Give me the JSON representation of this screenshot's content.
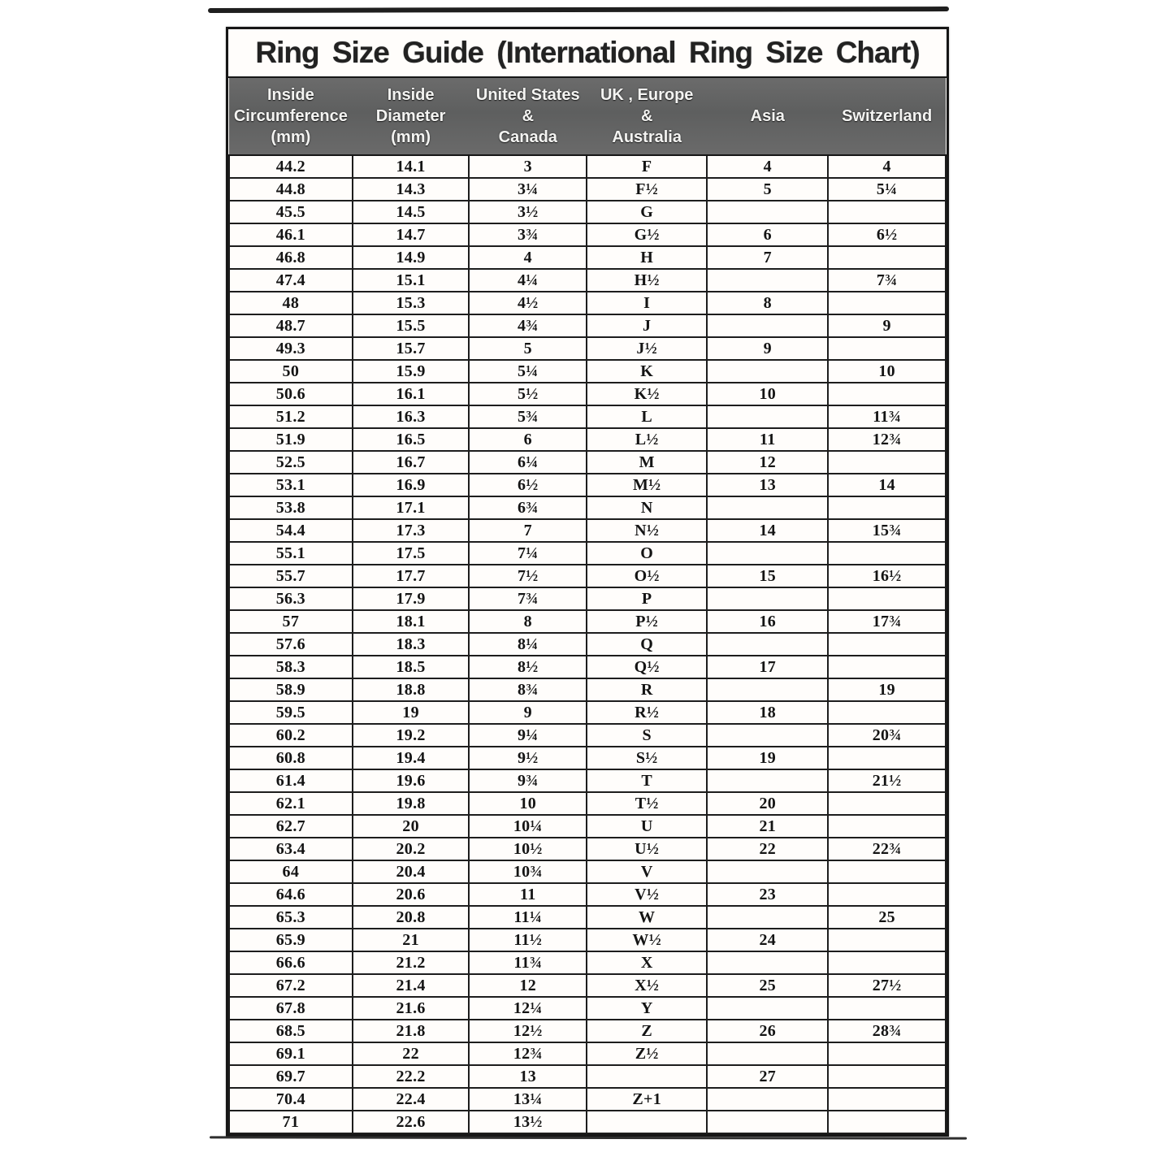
{
  "title": "Ring Size Guide (International Ring Size Chart)",
  "colors": {
    "header_bg": "#636363",
    "header_text": "#ffffff",
    "border": "#1d1d1d",
    "title_text": "#222222",
    "page_bg": "#ffffff"
  },
  "table": {
    "columns": [
      "Inside\nCircumference\n(mm)",
      "Inside\nDiameter\n(mm)",
      "United States\n&\nCanada",
      "UK , Europe\n&\nAustralia",
      "Asia",
      "Switzerland"
    ],
    "rows": [
      [
        "44.2",
        "14.1",
        "3",
        "F",
        "4",
        "4"
      ],
      [
        "44.8",
        "14.3",
        "3¼",
        "F½",
        "5",
        "5¼"
      ],
      [
        "45.5",
        "14.5",
        "3½",
        "G",
        "",
        ""
      ],
      [
        "46.1",
        "14.7",
        "3¾",
        "G½",
        "6",
        "6½"
      ],
      [
        "46.8",
        "14.9",
        "4",
        "H",
        "7",
        ""
      ],
      [
        "47.4",
        "15.1",
        "4¼",
        "H½",
        "",
        "7¾"
      ],
      [
        "48",
        "15.3",
        "4½",
        "I",
        "8",
        ""
      ],
      [
        "48.7",
        "15.5",
        "4¾",
        "J",
        "",
        "9"
      ],
      [
        "49.3",
        "15.7",
        "5",
        "J½",
        "9",
        ""
      ],
      [
        "50",
        "15.9",
        "5¼",
        "K",
        "",
        "10"
      ],
      [
        "50.6",
        "16.1",
        "5½",
        "K½",
        "10",
        ""
      ],
      [
        "51.2",
        "16.3",
        "5¾",
        "L",
        "",
        "11¾"
      ],
      [
        "51.9",
        "16.5",
        "6",
        "L½",
        "11",
        "12¾"
      ],
      [
        "52.5",
        "16.7",
        "6¼",
        "M",
        "12",
        ""
      ],
      [
        "53.1",
        "16.9",
        "6½",
        "M½",
        "13",
        "14"
      ],
      [
        "53.8",
        "17.1",
        "6¾",
        "N",
        "",
        ""
      ],
      [
        "54.4",
        "17.3",
        "7",
        "N½",
        "14",
        "15¾"
      ],
      [
        "55.1",
        "17.5",
        "7¼",
        "O",
        "",
        ""
      ],
      [
        "55.7",
        "17.7",
        "7½",
        "O½",
        "15",
        "16½"
      ],
      [
        "56.3",
        "17.9",
        "7¾",
        "P",
        "",
        ""
      ],
      [
        "57",
        "18.1",
        "8",
        "P½",
        "16",
        "17¾"
      ],
      [
        "57.6",
        "18.3",
        "8¼",
        "Q",
        "",
        ""
      ],
      [
        "58.3",
        "18.5",
        "8½",
        "Q½",
        "17",
        ""
      ],
      [
        "58.9",
        "18.8",
        "8¾",
        "R",
        "",
        "19"
      ],
      [
        "59.5",
        "19",
        "9",
        "R½",
        "18",
        ""
      ],
      [
        "60.2",
        "19.2",
        "9¼",
        "S",
        "",
        "20¾"
      ],
      [
        "60.8",
        "19.4",
        "9½",
        "S½",
        "19",
        ""
      ],
      [
        "61.4",
        "19.6",
        "9¾",
        "T",
        "",
        "21½"
      ],
      [
        "62.1",
        "19.8",
        "10",
        "T½",
        "20",
        ""
      ],
      [
        "62.7",
        "20",
        "10¼",
        "U",
        "21",
        ""
      ],
      [
        "63.4",
        "20.2",
        "10½",
        "U½",
        "22",
        "22¾"
      ],
      [
        "64",
        "20.4",
        "10¾",
        "V",
        "",
        ""
      ],
      [
        "64.6",
        "20.6",
        "11",
        "V½",
        "23",
        ""
      ],
      [
        "65.3",
        "20.8",
        "11¼",
        "W",
        "",
        "25"
      ],
      [
        "65.9",
        "21",
        "11½",
        "W½",
        "24",
        ""
      ],
      [
        "66.6",
        "21.2",
        "11¾",
        "X",
        "",
        ""
      ],
      [
        "67.2",
        "21.4",
        "12",
        "X½",
        "25",
        "27½"
      ],
      [
        "67.8",
        "21.6",
        "12¼",
        "Y",
        "",
        ""
      ],
      [
        "68.5",
        "21.8",
        "12½",
        "Z",
        "26",
        "28¾"
      ],
      [
        "69.1",
        "22",
        "12¾",
        "Z½",
        "",
        ""
      ],
      [
        "69.7",
        "22.2",
        "13",
        "",
        "27",
        ""
      ],
      [
        "70.4",
        "22.4",
        "13¼",
        "Z+1",
        "",
        ""
      ],
      [
        "71",
        "22.6",
        "13½",
        "",
        "",
        ""
      ]
    ]
  }
}
